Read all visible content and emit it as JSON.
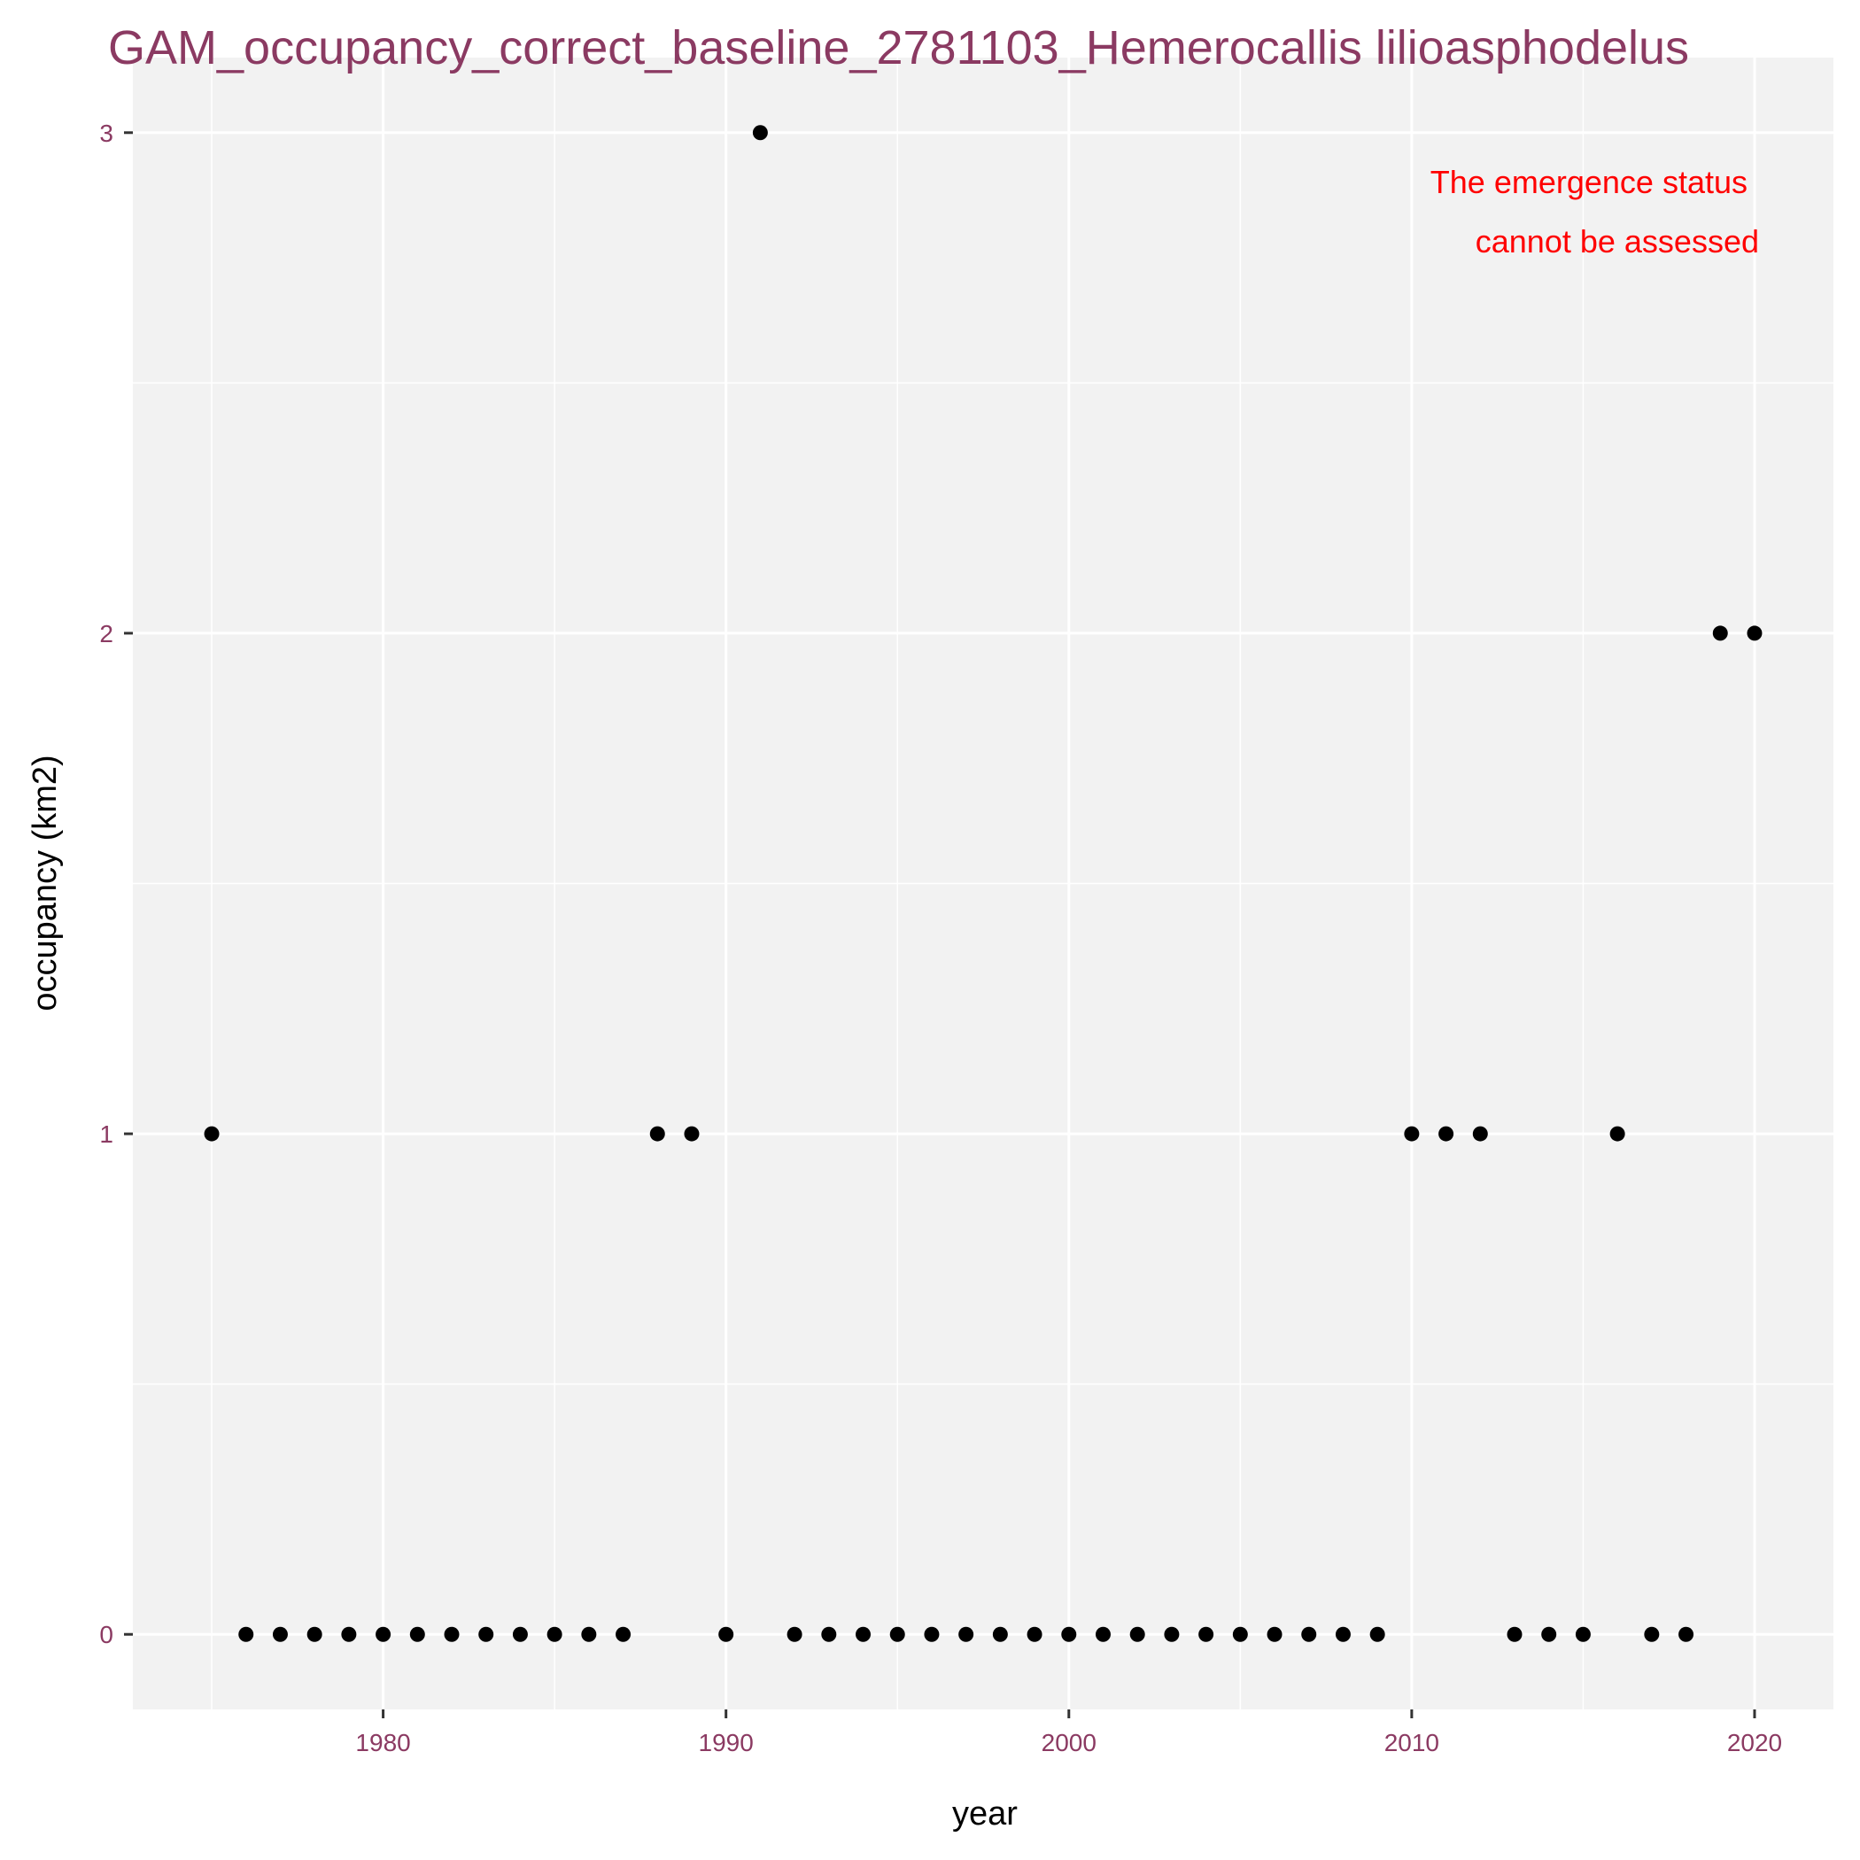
{
  "chart_data": {
    "type": "scatter",
    "title": "GAM_occupancy_correct_baseline_2781103_Hemerocallis lilioasphodelus",
    "xlabel": "year",
    "ylabel": "occupancy (km2)",
    "xlim": [
      1972.7,
      2022.3
    ],
    "ylim": [
      -0.15,
      3.15
    ],
    "x_ticks": [
      1980,
      1990,
      2000,
      2010,
      2020
    ],
    "y_ticks": [
      0,
      1,
      2,
      3
    ],
    "grid": true,
    "annotation": [
      "The emergence status",
      "cannot be assessed"
    ],
    "colors": {
      "panel": "#f2f2f2",
      "grid": "#ffffff",
      "points": "#000000",
      "title": "#8b3a62",
      "tick_labels": "#8b3a62",
      "annotation": "#ff0000"
    },
    "points": [
      {
        "x": 1975,
        "y": 1
      },
      {
        "x": 1976,
        "y": 0
      },
      {
        "x": 1977,
        "y": 0
      },
      {
        "x": 1978,
        "y": 0
      },
      {
        "x": 1979,
        "y": 0
      },
      {
        "x": 1980,
        "y": 0
      },
      {
        "x": 1981,
        "y": 0
      },
      {
        "x": 1982,
        "y": 0
      },
      {
        "x": 1983,
        "y": 0
      },
      {
        "x": 1984,
        "y": 0
      },
      {
        "x": 1985,
        "y": 0
      },
      {
        "x": 1986,
        "y": 0
      },
      {
        "x": 1987,
        "y": 0
      },
      {
        "x": 1988,
        "y": 1
      },
      {
        "x": 1989,
        "y": 1
      },
      {
        "x": 1990,
        "y": 0
      },
      {
        "x": 1991,
        "y": 3
      },
      {
        "x": 1992,
        "y": 0
      },
      {
        "x": 1993,
        "y": 0
      },
      {
        "x": 1994,
        "y": 0
      },
      {
        "x": 1995,
        "y": 0
      },
      {
        "x": 1996,
        "y": 0
      },
      {
        "x": 1997,
        "y": 0
      },
      {
        "x": 1998,
        "y": 0
      },
      {
        "x": 1999,
        "y": 0
      },
      {
        "x": 2000,
        "y": 0
      },
      {
        "x": 2001,
        "y": 0
      },
      {
        "x": 2002,
        "y": 0
      },
      {
        "x": 2003,
        "y": 0
      },
      {
        "x": 2004,
        "y": 0
      },
      {
        "x": 2005,
        "y": 0
      },
      {
        "x": 2006,
        "y": 0
      },
      {
        "x": 2007,
        "y": 0
      },
      {
        "x": 2008,
        "y": 0
      },
      {
        "x": 2009,
        "y": 0
      },
      {
        "x": 2010,
        "y": 1
      },
      {
        "x": 2011,
        "y": 1
      },
      {
        "x": 2012,
        "y": 1
      },
      {
        "x": 2013,
        "y": 0
      },
      {
        "x": 2014,
        "y": 0
      },
      {
        "x": 2015,
        "y": 0
      },
      {
        "x": 2016,
        "y": 1
      },
      {
        "x": 2017,
        "y": 0
      },
      {
        "x": 2018,
        "y": 0
      },
      {
        "x": 2019,
        "y": 2
      },
      {
        "x": 2020,
        "y": 2
      }
    ]
  }
}
